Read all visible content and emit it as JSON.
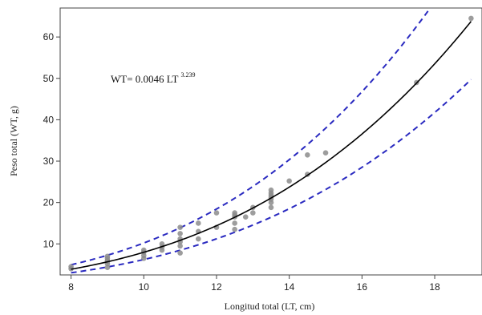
{
  "chart_data": {
    "type": "scatter",
    "xlabel": "Longitud total  (LT, cm)",
    "ylabel": "Peso total (WT, g)",
    "xlim": [
      7.7,
      19.3
    ],
    "ylim": [
      2.5,
      67
    ],
    "xticks": [
      8,
      10,
      12,
      14,
      16,
      18
    ],
    "yticks": [
      10,
      20,
      30,
      40,
      50,
      60
    ],
    "annotation": {
      "base": "WT= 0.0046 LT",
      "exponent": "3.239"
    },
    "fit": {
      "a": 0.0046,
      "b": 3.239,
      "color": "#000000"
    },
    "bands": {
      "upper_factor": 1.28,
      "lower_factor": 0.78,
      "color": "#2a2ac0",
      "style": "dashed"
    },
    "points_color": "#8c8c8c",
    "points": [
      [
        8.0,
        4.0
      ],
      [
        8.0,
        4.5
      ],
      [
        9.0,
        4.3
      ],
      [
        9.0,
        5.2
      ],
      [
        9.0,
        5.8
      ],
      [
        9.0,
        6.0
      ],
      [
        9.0,
        6.5
      ],
      [
        9.0,
        7.0
      ],
      [
        10.0,
        6.5
      ],
      [
        10.0,
        7.2
      ],
      [
        10.0,
        8.0
      ],
      [
        10.0,
        8.5
      ],
      [
        10.5,
        8.5
      ],
      [
        10.5,
        9.2
      ],
      [
        10.5,
        10.0
      ],
      [
        11.0,
        7.8
      ],
      [
        11.0,
        9.5
      ],
      [
        11.0,
        10.5
      ],
      [
        11.0,
        11.2
      ],
      [
        11.0,
        12.5
      ],
      [
        11.0,
        14.0
      ],
      [
        11.5,
        11.2
      ],
      [
        11.5,
        13.0
      ],
      [
        11.5,
        15.0
      ],
      [
        12.0,
        14.0
      ],
      [
        12.0,
        17.5
      ],
      [
        12.5,
        13.5
      ],
      [
        12.5,
        15.0
      ],
      [
        12.5,
        16.5
      ],
      [
        12.5,
        17.0
      ],
      [
        12.5,
        17.5
      ],
      [
        12.8,
        16.5
      ],
      [
        13.0,
        17.5
      ],
      [
        13.0,
        18.8
      ],
      [
        13.5,
        18.8
      ],
      [
        13.5,
        20.0
      ],
      [
        13.5,
        20.8
      ],
      [
        13.5,
        21.3
      ],
      [
        13.5,
        21.8
      ],
      [
        13.5,
        22.3
      ],
      [
        13.5,
        23.0
      ],
      [
        14.0,
        25.2
      ],
      [
        14.5,
        26.8
      ],
      [
        14.5,
        31.5
      ],
      [
        15.0,
        32.0
      ],
      [
        17.5,
        49.0
      ],
      [
        19.0,
        64.5
      ]
    ]
  }
}
